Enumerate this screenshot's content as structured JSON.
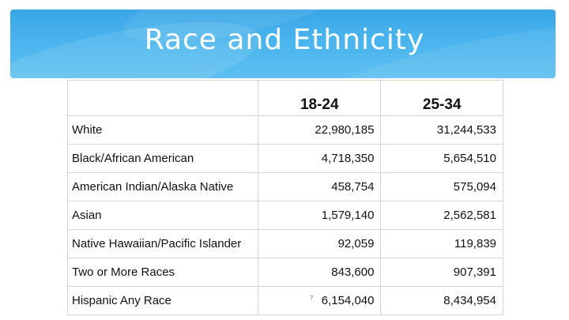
{
  "slide": {
    "title": "Race and Ethnicity",
    "page_number": "7",
    "colors": {
      "banner": "#49b4ee",
      "title_text": "#ffffff",
      "grid_lines": "#d4d4d4"
    }
  },
  "table": {
    "columns": [
      "18-24",
      "25-34"
    ],
    "rows": [
      {
        "label": "White",
        "values": [
          "22,980,185",
          "31,244,533"
        ]
      },
      {
        "label": "Black/African American",
        "values": [
          "4,718,350",
          "5,654,510"
        ]
      },
      {
        "label": "American Indian/Alaska  Native",
        "values": [
          "458,754",
          "575,094"
        ]
      },
      {
        "label": "Asian",
        "values": [
          "1,579,140",
          "2,562,581"
        ]
      },
      {
        "label": "Native Hawaiian/Pacific Islander",
        "values": [
          "92,059",
          "119,839"
        ]
      },
      {
        "label": "Two or More Races",
        "values": [
          "843,600",
          "907,391"
        ]
      },
      {
        "label": "Hispanic Any Race",
        "values": [
          "6,154,040",
          "8,434,954"
        ]
      }
    ]
  }
}
